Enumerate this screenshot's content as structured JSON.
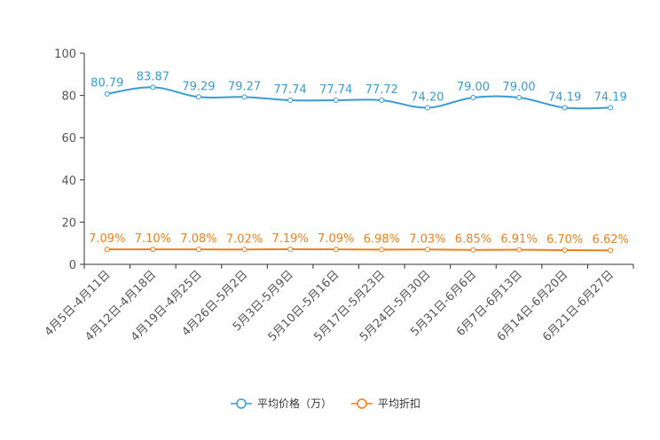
{
  "chart_data": {
    "type": "line",
    "title": "",
    "xlabel": "",
    "ylabel": "",
    "ylim": [
      0,
      100
    ],
    "yticks": [
      0,
      20,
      40,
      60,
      80,
      100
    ],
    "grid": false,
    "legend_position": "bottom-center",
    "categories": [
      "4月5日-4月11日",
      "4月12日-4月18日",
      "4月19日-4月25日",
      "4月26日-5月2日",
      "5月3日-5月9日",
      "5月10日-5月16日",
      "5月17日-5月23日",
      "5月24日-5月30日",
      "5月31日-6月6日",
      "6月7日-6月13日",
      "6月14日-6月20日",
      "6月21日-6月27日"
    ],
    "series": [
      {
        "name": "平均价格（万）",
        "color": "#3a9bd5",
        "smooth": true,
        "values": [
          80.79,
          83.87,
          79.29,
          79.27,
          77.74,
          77.74,
          77.72,
          74.2,
          79.0,
          79.0,
          74.19,
          74.19
        ],
        "labels": [
          "80.79",
          "83.87",
          "79.29",
          "79.27",
          "77.74",
          "77.74",
          "77.72",
          "74.20",
          "79.00",
          "79.00",
          "74.19",
          "74.19"
        ]
      },
      {
        "name": "平均折扣",
        "color": "#f07f1b",
        "smooth": false,
        "values": [
          7.09,
          7.1,
          7.08,
          7.02,
          7.19,
          7.09,
          6.98,
          7.03,
          6.85,
          6.91,
          6.7,
          6.62
        ],
        "labels": [
          "7.09%",
          "7.10%",
          "7.08%",
          "7.02%",
          "7.19%",
          "7.09%",
          "6.98%",
          "7.03%",
          "6.85%",
          "6.91%",
          "6.70%",
          "6.62%"
        ]
      }
    ]
  }
}
